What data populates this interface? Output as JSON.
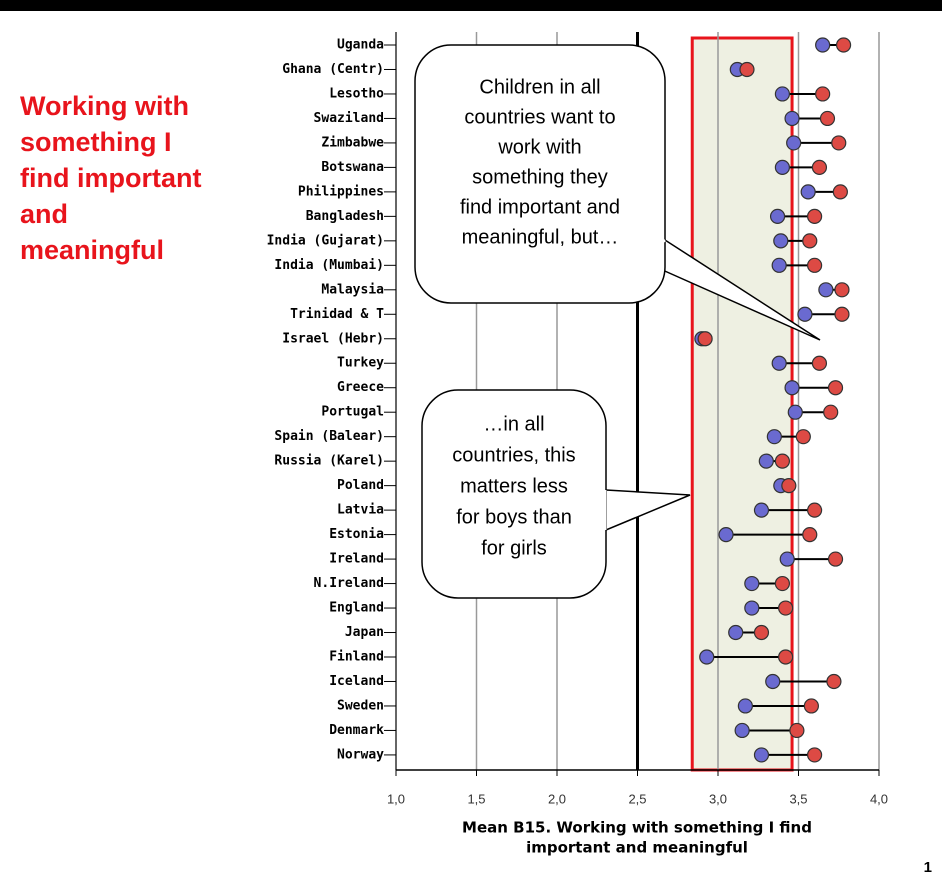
{
  "title_lines": [
    "Working with",
    "something I",
    "find important",
    "and",
    "meaningful"
  ],
  "page_number": "1",
  "chart_data": {
    "type": "dumbbell",
    "categories": [
      "Uganda",
      "Ghana (Centr)",
      "Lesotho",
      "Swaziland",
      "Zimbabwe",
      "Botswana",
      "Philippines",
      "Bangladesh",
      "India (Gujarat)",
      "India (Mumbai)",
      "Malaysia",
      "Trinidad & T",
      "Israel (Hebr)",
      "Turkey",
      "Greece",
      "Portugal",
      "Spain (Balear)",
      "Russia (Karel)",
      "Poland",
      "Latvia",
      "Estonia",
      "Ireland",
      "N.Ireland",
      "England",
      "Japan",
      "Finland",
      "Iceland",
      "Sweden",
      "Denmark",
      "Norway"
    ],
    "series": [
      {
        "color": "#6a6ad0",
        "values": [
          3.65,
          3.12,
          3.4,
          3.46,
          3.47,
          3.4,
          3.56,
          3.37,
          3.39,
          3.38,
          3.67,
          3.54,
          2.9,
          3.38,
          3.46,
          3.48,
          3.35,
          3.3,
          3.39,
          3.27,
          3.05,
          3.43,
          3.21,
          3.21,
          3.11,
          2.93,
          3.34,
          3.17,
          3.15,
          3.27
        ]
      },
      {
        "color": "#dd4a44",
        "values": [
          3.78,
          3.18,
          3.65,
          3.68,
          3.75,
          3.63,
          3.76,
          3.6,
          3.57,
          3.6,
          3.77,
          3.77,
          2.92,
          3.63,
          3.73,
          3.7,
          3.53,
          3.4,
          3.44,
          3.6,
          3.57,
          3.73,
          3.4,
          3.42,
          3.27,
          3.42,
          3.72,
          3.58,
          3.49,
          3.6
        ]
      }
    ],
    "x_label_lines": [
      "Mean B15. Working with something I find",
      "important and meaningful"
    ],
    "xlim": [
      1,
      4
    ],
    "xticks": [
      {
        "value": 1,
        "label": "1,0"
      },
      {
        "value": 1.5,
        "label": "1,5"
      },
      {
        "value": 2,
        "label": "2,0"
      },
      {
        "value": 2.5,
        "label": "2,5"
      },
      {
        "value": 3,
        "label": "3,0"
      },
      {
        "value": 3.5,
        "label": "3,5"
      },
      {
        "value": 4,
        "label": "4,0"
      }
    ],
    "grid": true,
    "reference_line": 2.5,
    "highlight": {
      "from": 2.84,
      "to": 3.46
    },
    "annotations": [
      {
        "lines": [
          "Children in all",
          "countries want to",
          "work with",
          "something they",
          "find important and",
          "meaningful, but…"
        ]
      },
      {
        "lines": [
          "…in all",
          "countries, this",
          "matters less",
          "for boys than",
          "for girls"
        ]
      }
    ]
  }
}
